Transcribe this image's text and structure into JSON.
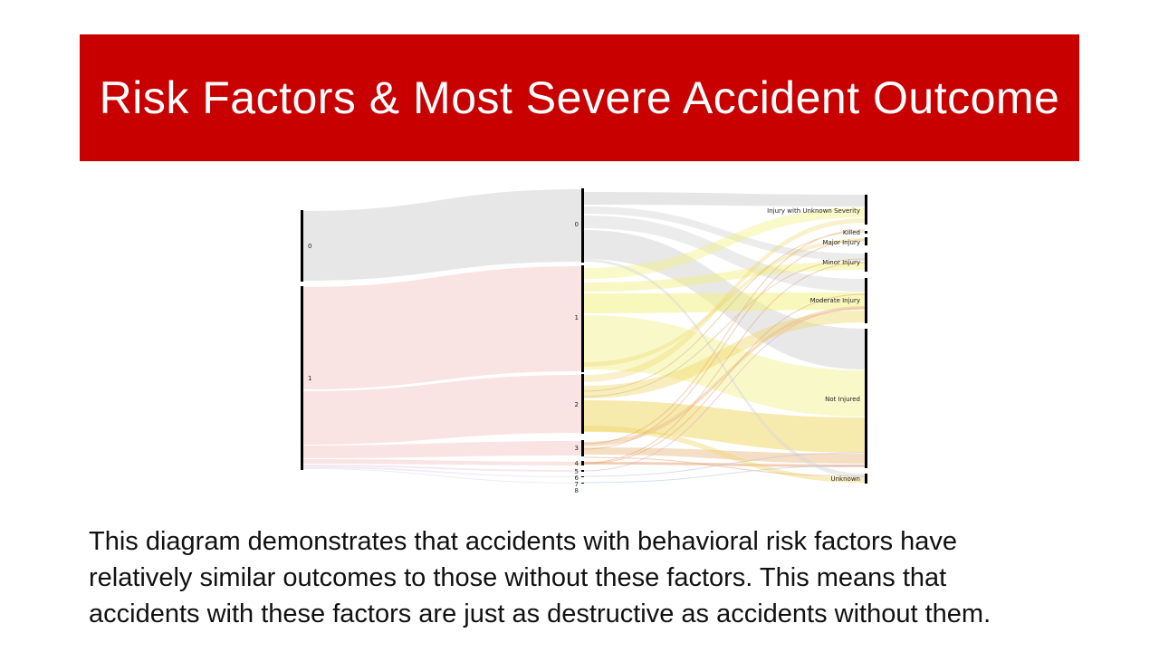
{
  "slide": {
    "title": "Risk Factors & Most Severe Accident Outcome",
    "caption_lines": [
      "This diagram demonstrates that accidents with behavioral risk factors have",
      "relatively similar outcomes to those without these factors. This means that",
      "accidents with these factors are just as destructive as accidents without them."
    ]
  },
  "colors": {
    "banner": "#c80000",
    "flow_group_0": "#e3e3e3",
    "flow_group_1": "#f9dede",
    "flow_mid_1": "#f2f07a",
    "flow_mid_2": "#efd86a",
    "flow_mid_3": "#ecc08a",
    "flow_mid_4": "#e9a070",
    "node_bar": "#000000"
  },
  "diagram": {
    "type": "sankey",
    "left_nodes": [
      {
        "id": "L0",
        "label": "0"
      },
      {
        "id": "L1",
        "label": "1"
      }
    ],
    "middle_nodes": [
      {
        "id": "M0",
        "label": "0"
      },
      {
        "id": "M1",
        "label": "1"
      },
      {
        "id": "M2",
        "label": "2"
      },
      {
        "id": "M3",
        "label": "3"
      },
      {
        "id": "M4",
        "label": "4"
      },
      {
        "id": "M5",
        "label": "5"
      },
      {
        "id": "M6",
        "label": "6"
      },
      {
        "id": "M7",
        "label": "7"
      },
      {
        "id": "M8",
        "label": "8"
      }
    ],
    "right_nodes": [
      {
        "id": "R0",
        "label": "Injury with Unknown Severity"
      },
      {
        "id": "R1",
        "label": "Killed"
      },
      {
        "id": "R2",
        "label": "Major Injury"
      },
      {
        "id": "R3",
        "label": "Minor Injury"
      },
      {
        "id": "R4",
        "label": "Moderate Injury"
      },
      {
        "id": "R5",
        "label": "Not Injured"
      },
      {
        "id": "R6",
        "label": "Unknown"
      }
    ]
  }
}
